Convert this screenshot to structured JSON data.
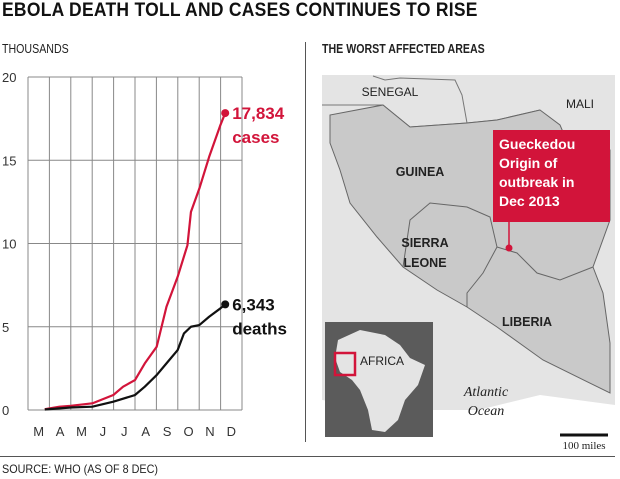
{
  "title": "EBOLA DEATH TOLL AND CASES CONTINUES TO RISE",
  "source": "SOURCE: WHO (AS OF 8 DEC)",
  "colors": {
    "cases": "#d2143a",
    "deaths": "#111111",
    "affected": "#c9c9c9",
    "land": "#e4e4e4",
    "inset_bg": "#5b5b5b"
  },
  "chart_data": {
    "type": "line",
    "title": "",
    "ylabel": "THOUSANDS",
    "ylim": [
      0,
      20
    ],
    "yticks": [
      "0",
      "5",
      "10",
      "15",
      "20"
    ],
    "xticks": [
      "M",
      "A",
      "M",
      "J",
      "J",
      "A",
      "S",
      "O",
      "N",
      "D"
    ],
    "xlim": [
      "2014-03-01",
      "2015-01-01"
    ],
    "grid": true,
    "series": [
      {
        "name": "cases",
        "end_value": "17,834",
        "color": "#d2143a",
        "x": [
          "2014-03-25",
          "2014-04-15",
          "2014-05-01",
          "2014-06-01",
          "2014-07-01",
          "2014-07-15",
          "2014-08-01",
          "2014-08-15",
          "2014-09-01",
          "2014-09-15",
          "2014-10-01",
          "2014-10-15",
          "2014-10-20",
          "2014-11-01",
          "2014-11-15",
          "2014-12-01",
          "2014-12-08"
        ],
        "y": [
          0.05,
          0.2,
          0.25,
          0.4,
          0.9,
          1.4,
          1.8,
          2.8,
          3.8,
          6.2,
          8.0,
          9.9,
          11.9,
          13.3,
          15.2,
          17.1,
          17.834
        ]
      },
      {
        "name": "deaths",
        "end_value": "6,343",
        "color": "#111111",
        "x": [
          "2014-03-25",
          "2014-05-01",
          "2014-06-01",
          "2014-07-01",
          "2014-08-01",
          "2014-08-15",
          "2014-09-01",
          "2014-09-15",
          "2014-10-01",
          "2014-10-10",
          "2014-10-20",
          "2014-11-01",
          "2014-11-15",
          "2014-12-01",
          "2014-12-08"
        ],
        "y": [
          0.03,
          0.15,
          0.2,
          0.5,
          0.9,
          1.4,
          2.1,
          2.8,
          3.6,
          4.6,
          5.0,
          5.1,
          5.6,
          6.1,
          6.343
        ]
      }
    ]
  },
  "map": {
    "heading": "THE WORST AFFECTED AREAS",
    "labels": {
      "senegal": "SENEGAL",
      "mali": "MALI",
      "guinea": "GUINEA",
      "sierra1": "SIERRA",
      "sierra2": "LEONE",
      "liberia": "LIBERIA",
      "ocean1": "Atlantic",
      "ocean2": "Ocean",
      "africa": "AFRICA",
      "scale": "100 miles"
    },
    "callout": [
      "Gueckedou",
      "Origin of",
      "outbreak in",
      "Dec 2013"
    ]
  }
}
